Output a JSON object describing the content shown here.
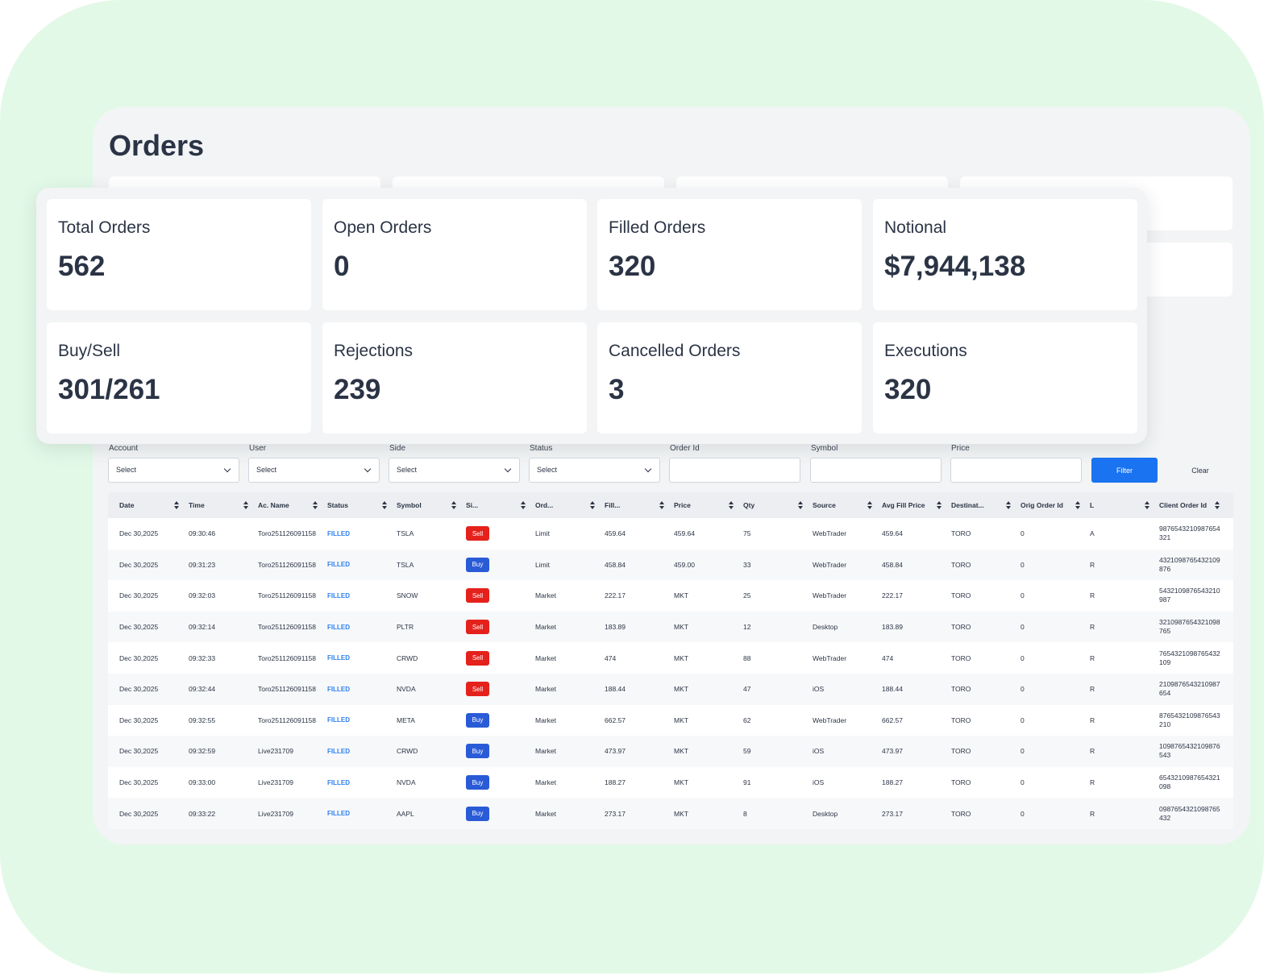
{
  "page": {
    "title": "Orders"
  },
  "stats": [
    {
      "label": "Total Orders",
      "value": "562"
    },
    {
      "label": "Open Orders",
      "value": "0"
    },
    {
      "label": "Filled Orders",
      "value": "320"
    },
    {
      "label": "Notional",
      "value": "$7,944,138"
    },
    {
      "label": "Buy/Sell",
      "value": "301/261"
    },
    {
      "label": "Rejections",
      "value": "239"
    },
    {
      "label": "Cancelled Orders",
      "value": "3"
    },
    {
      "label": "Executions",
      "value": "320"
    }
  ],
  "filters": {
    "account": {
      "label": "Account",
      "value": "Select"
    },
    "user": {
      "label": "User",
      "value": "Select"
    },
    "side": {
      "label": "Side",
      "value": "Select"
    },
    "status": {
      "label": "Status",
      "value": "Select"
    },
    "order_id": {
      "label": "Order Id",
      "value": ""
    },
    "symbol": {
      "label": "Symbol",
      "value": ""
    },
    "price": {
      "label": "Price",
      "value": ""
    },
    "filter_label": "Filter",
    "clear_label": "Clear"
  },
  "table": {
    "columns": [
      "Date",
      "Time",
      "Ac. Name",
      "Status",
      "Symbol",
      "Si...",
      "Ord...",
      "Fill...",
      "Price",
      "Qty",
      "Source",
      "Avg Fill Price",
      "Destinat...",
      "Orig Order Id",
      "L",
      "Client Order Id"
    ],
    "rows": [
      {
        "date": "Dec 30,2025",
        "time": "09:30:46",
        "account": "Toro251126091158",
        "status": "FILLED",
        "symbol": "TSLA",
        "side": "Sell",
        "order_type": "Limit",
        "fill": "459.64",
        "price": "459.64",
        "qty": "75",
        "source": "WebTrader",
        "avg_fill": "459.64",
        "destination": "TORO",
        "orig_order_id": "0",
        "l": "A",
        "client_order_id": "9876543210987654321"
      },
      {
        "date": "Dec 30,2025",
        "time": "09:31:23",
        "account": "Toro251126091158",
        "status": "FILLED",
        "symbol": "TSLA",
        "side": "Buy",
        "order_type": "Limit",
        "fill": "458.84",
        "price": "459.00",
        "qty": "33",
        "source": "WebTrader",
        "avg_fill": "458.84",
        "destination": "TORO",
        "orig_order_id": "0",
        "l": "R",
        "client_order_id": "4321098765432109876"
      },
      {
        "date": "Dec 30,2025",
        "time": "09:32:03",
        "account": "Toro251126091158",
        "status": "FILLED",
        "symbol": "SNOW",
        "side": "Sell",
        "order_type": "Market",
        "fill": "222.17",
        "price": "MKT",
        "qty": "25",
        "source": "WebTrader",
        "avg_fill": "222.17",
        "destination": "TORO",
        "orig_order_id": "0",
        "l": "R",
        "client_order_id": "5432109876543210987"
      },
      {
        "date": "Dec 30,2025",
        "time": "09:32:14",
        "account": "Toro251126091158",
        "status": "FILLED",
        "symbol": "PLTR",
        "side": "Sell",
        "order_type": "Market",
        "fill": "183.89",
        "price": "MKT",
        "qty": "12",
        "source": "Desktop",
        "avg_fill": "183.89",
        "destination": "TORO",
        "orig_order_id": "0",
        "l": "R",
        "client_order_id": "3210987654321098765"
      },
      {
        "date": "Dec 30,2025",
        "time": "09:32:33",
        "account": "Toro251126091158",
        "status": "FILLED",
        "symbol": "CRWD",
        "side": "Sell",
        "order_type": "Market",
        "fill": "474",
        "price": "MKT",
        "qty": "88",
        "source": "WebTrader",
        "avg_fill": "474",
        "destination": "TORO",
        "orig_order_id": "0",
        "l": "R",
        "client_order_id": "7654321098765432109"
      },
      {
        "date": "Dec 30,2025",
        "time": "09:32:44",
        "account": "Toro251126091158",
        "status": "FILLED",
        "symbol": "NVDA",
        "side": "Sell",
        "order_type": "Market",
        "fill": "188.44",
        "price": "MKT",
        "qty": "47",
        "source": "iOS",
        "avg_fill": "188.44",
        "destination": "TORO",
        "orig_order_id": "0",
        "l": "R",
        "client_order_id": "2109876543210987654"
      },
      {
        "date": "Dec 30,2025",
        "time": "09:32:55",
        "account": "Toro251126091158",
        "status": "FILLED",
        "symbol": "META",
        "side": "Buy",
        "order_type": "Market",
        "fill": "662.57",
        "price": "MKT",
        "qty": "62",
        "source": "WebTrader",
        "avg_fill": "662.57",
        "destination": "TORO",
        "orig_order_id": "0",
        "l": "R",
        "client_order_id": "8765432109876543210"
      },
      {
        "date": "Dec 30,2025",
        "time": "09:32:59",
        "account": "Live231709",
        "status": "FILLED",
        "symbol": "CRWD",
        "side": "Buy",
        "order_type": "Market",
        "fill": "473.97",
        "price": "MKT",
        "qty": "59",
        "source": "iOS",
        "avg_fill": "473.97",
        "destination": "TORO",
        "orig_order_id": "0",
        "l": "R",
        "client_order_id": "1098765432109876543"
      },
      {
        "date": "Dec 30,2025",
        "time": "09:33:00",
        "account": "Live231709",
        "status": "FILLED",
        "symbol": "NVDA",
        "side": "Buy",
        "order_type": "Market",
        "fill": "188.27",
        "price": "MKT",
        "qty": "91",
        "source": "iOS",
        "avg_fill": "188.27",
        "destination": "TORO",
        "orig_order_id": "0",
        "l": "R",
        "client_order_id": "6543210987654321098"
      },
      {
        "date": "Dec 30,2025",
        "time": "09:33:22",
        "account": "Live231709",
        "status": "FILLED",
        "symbol": "AAPL",
        "side": "Buy",
        "order_type": "Market",
        "fill": "273.17",
        "price": "MKT",
        "qty": "8",
        "source": "Desktop",
        "avg_fill": "273.17",
        "destination": "TORO",
        "orig_order_id": "0",
        "l": "R",
        "client_order_id": "0987654321098765432"
      }
    ]
  },
  "colors": {
    "background": "#e3f9e8",
    "panel": "#f2f4f5",
    "text": "#2b3445",
    "status_filled": "#2f80ed",
    "sell": "#e5211c",
    "buy": "#2a5bd7",
    "filter_button": "#1a73f0"
  }
}
